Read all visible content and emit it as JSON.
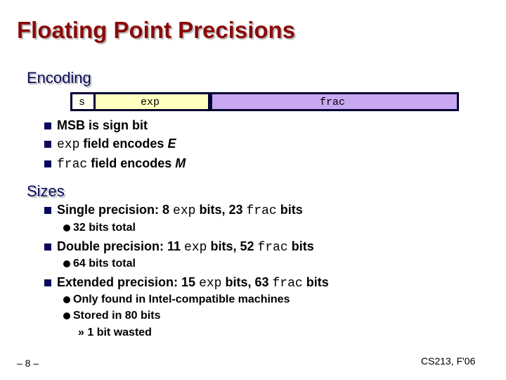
{
  "title": "Floating Point Precisions",
  "encoding": {
    "heading": "Encoding",
    "fields": {
      "s": "s",
      "exp": "exp",
      "frac": "frac"
    },
    "colors": {
      "s": "#ffffc0",
      "exp": "#ffffc0",
      "frac": "#c8a8f0",
      "border": "#000033"
    },
    "bullets": [
      {
        "text": "MSB is sign bit"
      },
      {
        "code": "exp",
        "text": " field encodes ",
        "var": "E"
      },
      {
        "code": "frac",
        "text": " field encodes ",
        "var": "M"
      }
    ]
  },
  "sizes": {
    "heading": "Sizes",
    "single": {
      "pre": "Single precision: 8 ",
      "code1": "exp",
      "mid": " bits, 23 ",
      "code2": "frac",
      "post": " bits",
      "sub": "32 bits total"
    },
    "double": {
      "pre": "Double precision: 11 ",
      "code1": "exp",
      "mid": " bits, 52 ",
      "code2": "frac",
      "post": " bits",
      "sub": "64 bits total"
    },
    "extended": {
      "pre": "Extended precision: 15 ",
      "code1": "exp",
      "mid": " bits, 63 ",
      "code2": "frac",
      "post": " bits",
      "sub1": "Only found in Intel-compatible machines",
      "sub2": "Stored in 80 bits",
      "sub3_marker": "»",
      "sub3": "1 bit wasted"
    }
  },
  "footer": {
    "page": "– 8 –",
    "course": "CS213, F'06"
  }
}
